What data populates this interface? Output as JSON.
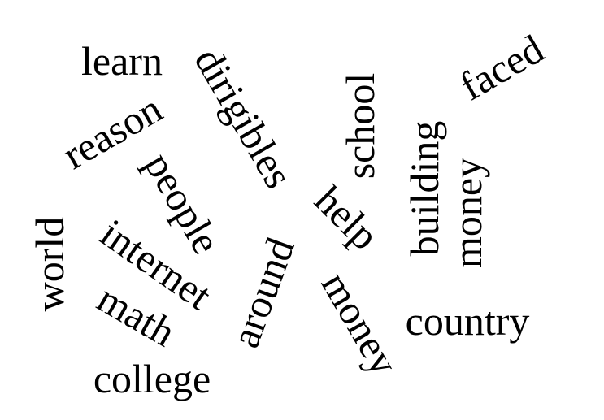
{
  "word_cloud": {
    "text_color": "#000000",
    "background_color": "#ffffff",
    "words": [
      "learn",
      "dirigibles",
      "school",
      "faced",
      "reason",
      "people",
      "building",
      "money",
      "help",
      "world",
      "internet",
      "around",
      "money",
      "math",
      "country",
      "college"
    ]
  }
}
